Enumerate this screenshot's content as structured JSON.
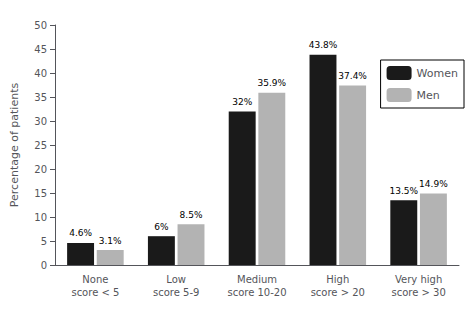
{
  "chart_data": {
    "type": "bar",
    "categories": [
      "None\nscore < 5",
      "Low\nscore 5-9",
      "Medium\nscore 10-20",
      "High\nscore > 20",
      "Very high\nscore > 30"
    ],
    "series": [
      {
        "name": "Women",
        "color": "#1a1a1a",
        "values": [
          4.6,
          6.0,
          32.0,
          43.8,
          13.5
        ],
        "value_labels": [
          "4.6%",
          "6%",
          "32%",
          "43.8%",
          "13.5%"
        ]
      },
      {
        "name": "Men",
        "color": "#b3b3b3",
        "values": [
          3.1,
          8.5,
          35.9,
          37.4,
          14.9
        ],
        "value_labels": [
          "3.1%",
          "8.5%",
          "35.9%",
          "37.4%",
          "14.9%"
        ]
      }
    ],
    "ylabel": "Percentage of patients",
    "ylim": [
      0,
      50
    ],
    "yticks": [
      0,
      5,
      10,
      15,
      20,
      25,
      30,
      35,
      40,
      45,
      50
    ],
    "grid": false,
    "legend": "upper right",
    "data_labels": true
  }
}
